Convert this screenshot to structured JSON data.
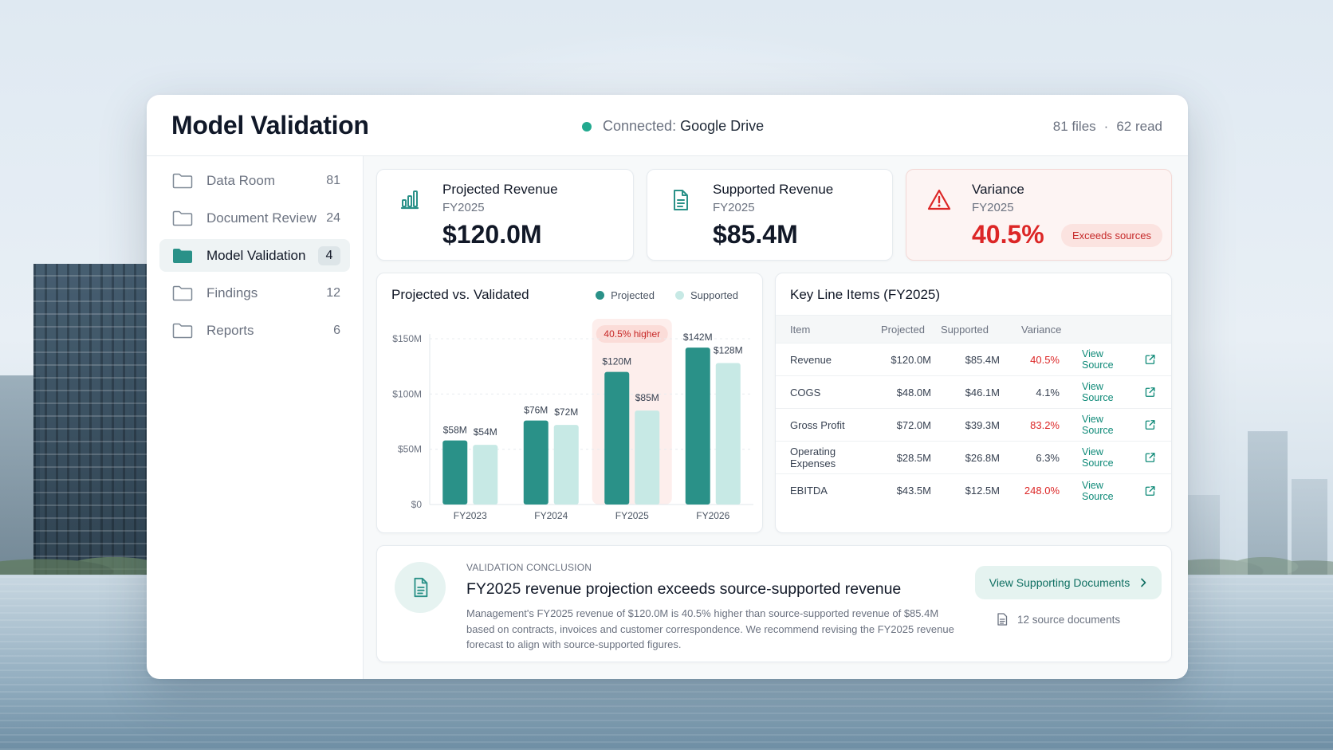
{
  "app": {
    "title": "Model Validation",
    "connection_label": "Connected:",
    "connection_source": "Google Drive",
    "files_count": "81 files",
    "separator": "·",
    "read_count": "62 read"
  },
  "sidebar": {
    "items": [
      {
        "label": "Data Room",
        "count": "81",
        "icon": "folder-icon",
        "active": false
      },
      {
        "label": "Document Review",
        "count": "24",
        "icon": "folder-icon",
        "active": false
      },
      {
        "label": "Model Validation",
        "count": "4",
        "icon": "folder-filled-icon",
        "active": true
      },
      {
        "label": "Findings",
        "count": "12",
        "icon": "folder-icon",
        "active": false
      },
      {
        "label": "Reports",
        "count": "6",
        "icon": "folder-icon",
        "active": false
      }
    ]
  },
  "kpis": [
    {
      "title": "Projected Revenue",
      "period": "FY2025",
      "value": "$120.0M",
      "icon": "bar-chart-icon"
    },
    {
      "title": "Supported Revenue",
      "period": "FY2025",
      "value": "$85.4M",
      "icon": "document-icon"
    },
    {
      "title": "Variance",
      "period": "FY2025",
      "value": "40.5%",
      "icon": "warning-icon",
      "badge": "Exceeds sources"
    }
  ],
  "colors": {
    "accent": "#22a98f",
    "projected": "#2a9188",
    "supported": "#c7e9e5",
    "danger": "#dc2626"
  },
  "chart_data": {
    "type": "bar",
    "title": "Projected vs. Validated",
    "categories": [
      "FY2023",
      "FY2024",
      "FY2025",
      "FY2026"
    ],
    "series": [
      {
        "name": "Projected",
        "values": [
          58,
          76,
          120,
          142
        ],
        "labels": [
          "$58M",
          "$76M",
          "$120M",
          "$142M"
        ]
      },
      {
        "name": "Supported",
        "values": [
          54,
          72,
          85,
          128
        ],
        "labels": [
          "$54M",
          "$72M",
          "$85M",
          "$128M"
        ]
      }
    ],
    "yticks": [
      {
        "value": 0,
        "label": "$0"
      },
      {
        "value": 50,
        "label": "$50M"
      },
      {
        "value": 100,
        "label": "$100M"
      },
      {
        "value": 150,
        "label": "$150M"
      }
    ],
    "ylim": [
      0,
      150
    ],
    "highlight": {
      "category": "FY2025",
      "label": "40.5% higher"
    },
    "legend_position": "top-right",
    "grid": true
  },
  "table": {
    "title": "Key Line Items (FY2025)",
    "headers": {
      "item": "Item",
      "projected": "Projected",
      "supported": "Supported",
      "variance": "Variance"
    },
    "link_label": "View Source",
    "rows": [
      {
        "item": "Revenue",
        "projected": "$120.0M",
        "supported": "$85.4M",
        "variance": "40.5%",
        "high": true
      },
      {
        "item": "COGS",
        "projected": "$48.0M",
        "supported": "$46.1M",
        "variance": "4.1%",
        "high": false
      },
      {
        "item": "Gross Profit",
        "projected": "$72.0M",
        "supported": "$39.3M",
        "variance": "83.2%",
        "high": true
      },
      {
        "item": "Operating Expenses",
        "projected": "$28.5M",
        "supported": "$26.8M",
        "variance": "6.3%",
        "high": false
      },
      {
        "item": "EBITDA",
        "projected": "$43.5M",
        "supported": "$12.5M",
        "variance": "248.0%",
        "high": true
      }
    ]
  },
  "conclusion": {
    "kicker": "VALIDATION CONCLUSION",
    "title": "FY2025 revenue projection exceeds source-supported revenue",
    "body": "Management's FY2025 revenue of $120.0M is 40.5% higher than source-supported revenue of $85.4M based on contracts, invoices and customer correspondence. We recommend revising the FY2025 revenue forecast to align with source-supported figures.",
    "button_label": "View Supporting Documents",
    "docs_label": "12 source documents"
  }
}
